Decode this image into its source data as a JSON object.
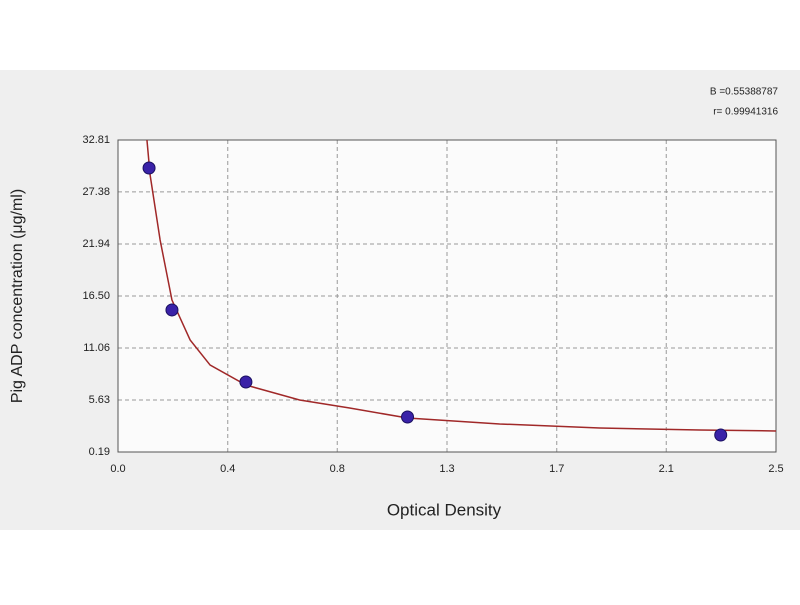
{
  "chart_data": {
    "type": "scatter",
    "x_label": "Optical Density",
    "y_label": "Pig ADP concentration (μg/ml)",
    "annotations": [
      "B =0.55388787",
      "r= 0.99941316"
    ],
    "xlim": [
      0,
      2.5
    ],
    "xticks": [
      {
        "value": 0,
        "label": "0.0"
      },
      {
        "value": 0.417,
        "label": "0.4"
      },
      {
        "value": 0.833,
        "label": "0.8"
      },
      {
        "value": 1.25,
        "label": "1.3"
      },
      {
        "value": 1.667,
        "label": "1.7"
      },
      {
        "value": 2.083,
        "label": "2.1"
      },
      2.5
    ],
    "ylim": [
      0.19,
      32.81
    ],
    "yticks": [
      0.19,
      5.63,
      11.06,
      {
        "value": 16.5,
        "label": "16.50"
      },
      21.94,
      27.38,
      32.81
    ],
    "grid": true,
    "points": {
      "color": "#3a22a8",
      "x": [
        0.118,
        0.205,
        0.486,
        1.1,
        2.29
      ],
      "values": [
        29.88,
        15.04,
        7.51,
        3.85,
        1.97
      ]
    },
    "curve": {
      "color": "#a02828",
      "x": [
        0.11,
        0.122,
        0.16,
        0.205,
        0.274,
        0.35,
        0.486,
        0.69,
        0.88,
        1.1,
        1.45,
        1.83,
        2.21,
        2.5
      ],
      "values": [
        32.81,
        29.15,
        22.35,
        16.08,
        11.9,
        9.28,
        7.19,
        5.63,
        4.79,
        3.74,
        3.12,
        2.7,
        2.49,
        2.39
      ]
    }
  }
}
